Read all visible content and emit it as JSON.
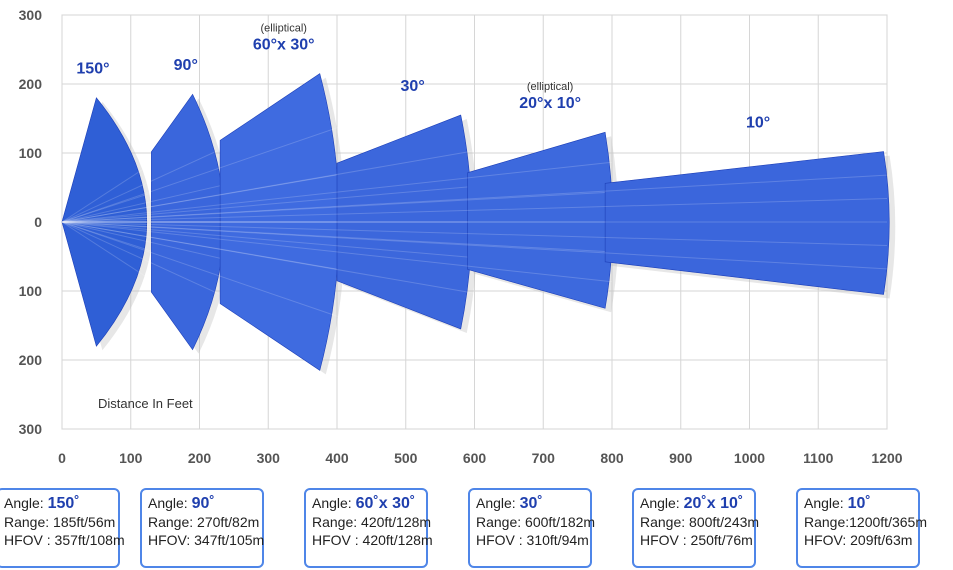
{
  "chart_data": {
    "type": "area",
    "title": "",
    "xlabel": "",
    "annotation": "Distance In Feet",
    "xlim": [
      0,
      1200
    ],
    "ylim": [
      -300,
      300
    ],
    "x_ticks": [
      "0",
      "100",
      "200",
      "300",
      "400",
      "500",
      "600",
      "700",
      "800",
      "900",
      "1000",
      "1100",
      "1200"
    ],
    "y_ticks": [
      {
        "value": 300,
        "label": "300"
      },
      {
        "value": 200,
        "label": "200"
      },
      {
        "value": 100,
        "label": "100"
      },
      {
        "value": 0,
        "label": "0"
      },
      {
        "value": -100,
        "label": "100"
      },
      {
        "value": -200,
        "label": "200"
      },
      {
        "value": -300,
        "label": "300"
      }
    ],
    "grid": true,
    "series": [
      {
        "name": "150°",
        "note": "",
        "range_ft": 185,
        "start_x": 0,
        "x": [
          50,
          185,
          50
        ],
        "top": [
          180,
          0,
          -180
        ],
        "color": "#2f5fd6"
      },
      {
        "name": "90°",
        "note": "",
        "range_ft": 270,
        "start_x": 130,
        "x": [
          190,
          270,
          190
        ],
        "top": [
          185,
          0,
          -185
        ],
        "color": "#3a66dc"
      },
      {
        "name": "60°x 30°",
        "note": "(elliptical)",
        "range_ft": 420,
        "start_x": 230,
        "x": [
          375,
          420,
          375
        ],
        "top": [
          215,
          0,
          -215
        ],
        "color": "#3f6be0"
      },
      {
        "name": "30°",
        "note": "",
        "range_ft": 600,
        "start_x": 400,
        "x": [
          580,
          600,
          580
        ],
        "top": [
          155,
          0,
          -155
        ],
        "color": "#3c67dc"
      },
      {
        "name": "20°x 10°",
        "note": "(elliptical)",
        "range_ft": 800,
        "start_x": 590,
        "x": [
          790,
          800,
          790
        ],
        "top": [
          130,
          0,
          -125
        ],
        "color": "#3d69dd"
      },
      {
        "name": "10°",
        "note": "",
        "range_ft": 1200,
        "start_x": 790,
        "x": [
          1195,
          1200,
          1195
        ],
        "top": [
          102,
          0,
          -105
        ],
        "color": "#3b66dc"
      }
    ]
  },
  "cards": [
    {
      "angle_prefix": "Angle: ",
      "angle_value": "150˚",
      "range": "Range: 185ft/56m",
      "hfov": "HFOV : 357ft/108m"
    },
    {
      "angle_prefix": "Angle: ",
      "angle_value": "90˚",
      "range": "Range: 270ft/82m",
      "hfov": "HFOV: 347ft/105m"
    },
    {
      "angle_prefix": "Angle: ",
      "angle_value": "60˚x 30˚",
      "range": "Range: 420ft/128m",
      "hfov": "HFOV : 420ft/128m"
    },
    {
      "angle_prefix": "Angle: ",
      "angle_value": "30˚",
      "range": "Range: 600ft/182m",
      "hfov": "HFOV : 310ft/94m"
    },
    {
      "angle_prefix": "Angle: ",
      "angle_value": "20˚x 10˚",
      "range": "Range: 800ft/243m",
      "hfov": "HFOV : 250ft/76m"
    },
    {
      "angle_prefix": "Angle: ",
      "angle_value": "10˚",
      "range": "Range:1200ft/365m",
      "hfov": "HFOV: 209ft/63m"
    }
  ]
}
